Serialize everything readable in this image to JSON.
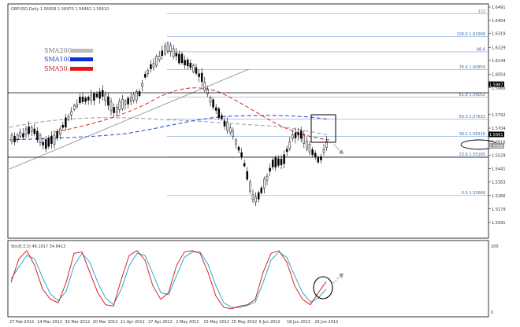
{
  "header": {
    "symbol_info": "GBPUSD,Daily  1.56958 1.56970 1.56482 1.56610"
  },
  "legend": [
    {
      "label": "SMA200",
      "color": "#7a7a7a",
      "swatch": "#bdbdbd"
    },
    {
      "label": "SMA100",
      "color": "#1f3fcf",
      "swatch": "#0a2ed8"
    },
    {
      "label": "SMA50",
      "color": "#d02020",
      "swatch": "#ee1111"
    }
  ],
  "price_axis": {
    "ticks": [
      "1.6491",
      "1.6404",
      "1.6319",
      "1.6229",
      "1.6144",
      "1.6054",
      "1.5966",
      "1.5792",
      "1.5704",
      "1.5616",
      "1.5529",
      "1.5441",
      "1.5353",
      "1.5266",
      "1.5179",
      "1.5091"
    ],
    "badges": [
      {
        "text": "1.5987",
        "bg": "#000000",
        "fg": "#ffffff"
      },
      {
        "text": "1.5661",
        "bg": "#000000",
        "fg": "#ffffff"
      },
      {
        "text": "1.5586",
        "bg": "#9a9a9a",
        "fg": "#ffffff"
      }
    ]
  },
  "fib_levels": [
    {
      "label": "112",
      "price": 1.6448
    },
    {
      "label": "100.0 1.62999",
      "price": 1.62999
    },
    {
      "label": "88.6",
      "price": 1.62
    },
    {
      "label": "76.4 1.60859",
      "price": 1.60859
    },
    {
      "label": "61.8 1.59052",
      "price": 1.59052
    },
    {
      "label": "50.0 1.57633",
      "price": 1.57633
    },
    {
      "label": "38.2 1.56516",
      "price": 1.56516
    },
    {
      "label": "23.6 1.55165",
      "price": 1.55165
    },
    {
      "label": "0.0 1.52666",
      "price": 1.52666
    }
  ],
  "stoch": {
    "label": "Sto(8,3,3) 46.1917 34.8413",
    "max": "100",
    "min": "0"
  },
  "date_axis": [
    "27 Feb 2012",
    "14 Mar 2012",
    "30 Mar 2012",
    "20 Mar 2012",
    "11 Apr 2012",
    "27 Apr 2012",
    "2 May 2012",
    "15 May 2012",
    "25 May 2012",
    "6 Jun 2012",
    "18 Jun 2012",
    "29 Jun 2012"
  ],
  "colors": {
    "grid": "#c8c8c8",
    "fib": "#7aa6dd",
    "candle": "#000000",
    "sma50": "#d02020",
    "sma100": "#1f3fcf",
    "sma200": "#9a9a9a",
    "stoch_main": "#d01010",
    "stoch_signal": "#1aa0c8"
  }
}
